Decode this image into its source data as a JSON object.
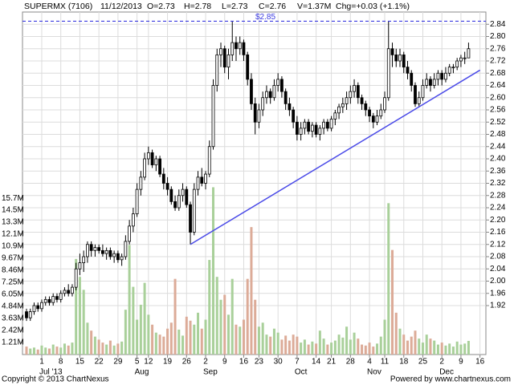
{
  "header": {
    "symbol": "SUPERMX (7106)",
    "date": "11/12/2013",
    "open": "O=2.73",
    "high": "H=2.78",
    "low": "L=2.73",
    "close": "C=2.76",
    "volume": "V=1.37M",
    "change": "Chg=+0.03 (+1.1%)"
  },
  "footer": {
    "left": "Copyright © 2013 ChartNexus",
    "right": "Powered by www.chartnexus.com"
  },
  "chart_data": {
    "type": "candlestick",
    "categories": [
      "2013-06-25",
      "2013-06-26",
      "2013-06-27",
      "2013-06-28",
      "2013-07-01",
      "2013-07-02",
      "2013-07-03",
      "2013-07-04",
      "2013-07-05",
      "2013-07-08",
      "2013-07-09",
      "2013-07-10",
      "2013-07-11",
      "2013-07-12",
      "2013-07-15",
      "2013-07-16",
      "2013-07-17",
      "2013-07-18",
      "2013-07-19",
      "2013-07-22",
      "2013-07-23",
      "2013-07-24",
      "2013-07-25",
      "2013-07-26",
      "2013-07-29",
      "2013-07-30",
      "2013-07-31",
      "2013-08-01",
      "2013-08-02",
      "2013-08-05",
      "2013-08-06",
      "2013-08-07",
      "2013-08-12",
      "2013-08-13",
      "2013-08-14",
      "2013-08-15",
      "2013-08-16",
      "2013-08-19",
      "2013-08-20",
      "2013-08-21",
      "2013-08-22",
      "2013-08-23",
      "2013-08-26",
      "2013-08-27",
      "2013-08-28",
      "2013-08-29",
      "2013-08-30",
      "2013-09-02",
      "2013-09-03",
      "2013-09-04",
      "2013-09-05",
      "2013-09-06",
      "2013-09-09",
      "2013-09-10",
      "2013-09-11",
      "2013-09-12",
      "2013-09-13",
      "2013-09-17",
      "2013-09-18",
      "2013-09-19",
      "2013-09-20",
      "2013-09-23",
      "2013-09-24",
      "2013-09-25",
      "2013-09-26",
      "2013-09-27",
      "2013-09-30",
      "2013-10-01",
      "2013-10-02",
      "2013-10-03",
      "2013-10-04",
      "2013-10-07",
      "2013-10-08",
      "2013-10-09",
      "2013-10-10",
      "2013-10-11",
      "2013-10-14",
      "2013-10-16",
      "2013-10-17",
      "2013-10-18",
      "2013-10-21",
      "2013-10-22",
      "2013-10-23",
      "2013-10-24",
      "2013-10-25",
      "2013-10-28",
      "2013-10-29",
      "2013-10-30",
      "2013-10-31",
      "2013-11-01",
      "2013-11-04",
      "2013-11-06",
      "2013-11-07",
      "2013-11-08",
      "2013-11-11",
      "2013-11-12",
      "2013-11-13",
      "2013-11-14",
      "2013-11-15",
      "2013-11-18",
      "2013-11-19",
      "2013-11-20",
      "2013-11-21",
      "2013-11-22",
      "2013-11-25",
      "2013-11-26",
      "2013-11-27",
      "2013-11-28",
      "2013-11-29",
      "2013-12-02",
      "2013-12-03",
      "2013-12-04",
      "2013-12-05",
      "2013-12-06",
      "2013-12-09",
      "2013-12-10",
      "2013-12-11"
    ],
    "candles": [
      [
        1.9,
        1.91,
        1.87,
        1.88
      ],
      [
        1.88,
        1.91,
        1.87,
        1.9
      ],
      [
        1.9,
        1.93,
        1.89,
        1.92
      ],
      [
        1.92,
        1.93,
        1.9,
        1.91
      ],
      [
        1.91,
        1.94,
        1.9,
        1.93
      ],
      [
        1.93,
        1.95,
        1.92,
        1.94
      ],
      [
        1.94,
        1.95,
        1.92,
        1.93
      ],
      [
        1.93,
        1.96,
        1.92,
        1.95
      ],
      [
        1.95,
        1.96,
        1.93,
        1.94
      ],
      [
        1.94,
        1.97,
        1.93,
        1.96
      ],
      [
        1.96,
        1.98,
        1.95,
        1.97
      ],
      [
        1.97,
        1.99,
        1.95,
        1.96
      ],
      [
        1.96,
        1.99,
        1.95,
        1.98
      ],
      [
        1.98,
        2.06,
        1.97,
        2.04
      ],
      [
        2.04,
        2.09,
        2.02,
        2.06
      ],
      [
        2.06,
        2.1,
        2.03,
        2.08
      ],
      [
        2.08,
        2.13,
        2.06,
        2.12
      ],
      [
        2.12,
        2.13,
        2.08,
        2.1
      ],
      [
        2.1,
        2.12,
        2.08,
        2.11
      ],
      [
        2.11,
        2.12,
        2.09,
        2.1
      ],
      [
        2.1,
        2.12,
        2.08,
        2.09
      ],
      [
        2.09,
        2.11,
        2.07,
        2.1
      ],
      [
        2.1,
        2.11,
        2.07,
        2.08
      ],
      [
        2.08,
        2.1,
        2.06,
        2.09
      ],
      [
        2.09,
        2.1,
        2.06,
        2.07
      ],
      [
        2.07,
        2.09,
        2.05,
        2.08
      ],
      [
        2.08,
        2.15,
        2.07,
        2.13
      ],
      [
        2.13,
        2.2,
        2.12,
        2.18
      ],
      [
        2.18,
        2.24,
        2.16,
        2.22
      ],
      [
        2.22,
        2.32,
        2.21,
        2.3
      ],
      [
        2.3,
        2.36,
        2.28,
        2.34
      ],
      [
        2.34,
        2.42,
        2.33,
        2.4
      ],
      [
        2.4,
        2.44,
        2.38,
        2.42
      ],
      [
        2.42,
        2.43,
        2.37,
        2.38
      ],
      [
        2.38,
        2.41,
        2.36,
        2.4
      ],
      [
        2.4,
        2.41,
        2.34,
        2.35
      ],
      [
        2.35,
        2.37,
        2.3,
        2.32
      ],
      [
        2.32,
        2.34,
        2.28,
        2.3
      ],
      [
        2.3,
        2.31,
        2.25,
        2.26
      ],
      [
        2.26,
        2.28,
        2.23,
        2.24
      ],
      [
        2.24,
        2.3,
        2.23,
        2.28
      ],
      [
        2.28,
        2.32,
        2.26,
        2.3
      ],
      [
        2.3,
        2.31,
        2.24,
        2.25
      ],
      [
        2.25,
        2.26,
        2.12,
        2.16
      ],
      [
        2.16,
        2.32,
        2.15,
        2.3
      ],
      [
        2.3,
        2.36,
        2.28,
        2.34
      ],
      [
        2.34,
        2.37,
        2.31,
        2.32
      ],
      [
        2.32,
        2.36,
        2.3,
        2.35
      ],
      [
        2.35,
        2.46,
        2.34,
        2.44
      ],
      [
        2.44,
        2.66,
        2.43,
        2.64
      ],
      [
        2.64,
        2.76,
        2.62,
        2.74
      ],
      [
        2.74,
        2.78,
        2.7,
        2.76
      ],
      [
        2.76,
        2.77,
        2.68,
        2.7
      ],
      [
        2.7,
        2.76,
        2.66,
        2.74
      ],
      [
        2.74,
        2.85,
        2.72,
        2.78
      ],
      [
        2.78,
        2.8,
        2.72,
        2.76
      ],
      [
        2.76,
        2.8,
        2.74,
        2.78
      ],
      [
        2.78,
        2.79,
        2.72,
        2.74
      ],
      [
        2.74,
        2.75,
        2.64,
        2.66
      ],
      [
        2.66,
        2.68,
        2.56,
        2.58
      ],
      [
        2.58,
        2.6,
        2.48,
        2.52
      ],
      [
        2.52,
        2.58,
        2.5,
        2.56
      ],
      [
        2.56,
        2.62,
        2.54,
        2.6
      ],
      [
        2.6,
        2.64,
        2.58,
        2.62
      ],
      [
        2.62,
        2.63,
        2.58,
        2.6
      ],
      [
        2.6,
        2.66,
        2.59,
        2.64
      ],
      [
        2.64,
        2.68,
        2.62,
        2.66
      ],
      [
        2.66,
        2.67,
        2.6,
        2.62
      ],
      [
        2.62,
        2.63,
        2.56,
        2.58
      ],
      [
        2.58,
        2.6,
        2.54,
        2.56
      ],
      [
        2.56,
        2.57,
        2.5,
        2.52
      ],
      [
        2.52,
        2.54,
        2.46,
        2.48
      ],
      [
        2.48,
        2.52,
        2.46,
        2.5
      ],
      [
        2.5,
        2.53,
        2.48,
        2.52
      ],
      [
        2.52,
        2.53,
        2.48,
        2.49
      ],
      [
        2.49,
        2.52,
        2.47,
        2.51
      ],
      [
        2.51,
        2.52,
        2.47,
        2.48
      ],
      [
        2.48,
        2.51,
        2.46,
        2.5
      ],
      [
        2.5,
        2.53,
        2.48,
        2.52
      ],
      [
        2.52,
        2.53,
        2.49,
        2.5
      ],
      [
        2.5,
        2.54,
        2.49,
        2.53
      ],
      [
        2.53,
        2.56,
        2.51,
        2.55
      ],
      [
        2.55,
        2.58,
        2.53,
        2.57
      ],
      [
        2.57,
        2.6,
        2.55,
        2.58
      ],
      [
        2.58,
        2.62,
        2.56,
        2.6
      ],
      [
        2.6,
        2.64,
        2.58,
        2.62
      ],
      [
        2.62,
        2.66,
        2.6,
        2.64
      ],
      [
        2.64,
        2.65,
        2.58,
        2.6
      ],
      [
        2.6,
        2.61,
        2.56,
        2.58
      ],
      [
        2.58,
        2.59,
        2.54,
        2.56
      ],
      [
        2.56,
        2.57,
        2.52,
        2.54
      ],
      [
        2.54,
        2.55,
        2.5,
        2.52
      ],
      [
        2.52,
        2.56,
        2.51,
        2.54
      ],
      [
        2.54,
        2.58,
        2.53,
        2.56
      ],
      [
        2.56,
        2.62,
        2.55,
        2.6
      ],
      [
        2.6,
        2.85,
        2.59,
        2.76
      ],
      [
        2.76,
        2.78,
        2.7,
        2.74
      ],
      [
        2.74,
        2.76,
        2.7,
        2.72
      ],
      [
        2.72,
        2.76,
        2.7,
        2.74
      ],
      [
        2.74,
        2.75,
        2.68,
        2.7
      ],
      [
        2.7,
        2.72,
        2.66,
        2.68
      ],
      [
        2.68,
        2.69,
        2.62,
        2.64
      ],
      [
        2.64,
        2.65,
        2.57,
        2.58
      ],
      [
        2.58,
        2.62,
        2.57,
        2.6
      ],
      [
        2.6,
        2.66,
        2.59,
        2.64
      ],
      [
        2.64,
        2.68,
        2.63,
        2.66
      ],
      [
        2.66,
        2.67,
        2.62,
        2.64
      ],
      [
        2.64,
        2.68,
        2.63,
        2.66
      ],
      [
        2.66,
        2.69,
        2.64,
        2.68
      ],
      [
        2.68,
        2.69,
        2.64,
        2.66
      ],
      [
        2.66,
        2.7,
        2.65,
        2.68
      ],
      [
        2.68,
        2.71,
        2.67,
        2.7
      ],
      [
        2.7,
        2.71,
        2.68,
        2.7
      ],
      [
        2.7,
        2.73,
        2.69,
        2.72
      ],
      [
        2.72,
        2.74,
        2.7,
        2.73
      ],
      [
        2.73,
        2.75,
        2.71,
        2.73
      ],
      [
        2.73,
        2.78,
        2.73,
        2.76
      ]
    ],
    "volumes": [
      0.8,
      0.6,
      0.7,
      0.5,
      0.9,
      0.7,
      0.6,
      1.0,
      0.8,
      0.7,
      1.1,
      0.9,
      1.2,
      9.6,
      7.8,
      6.5,
      3.2,
      2.4,
      1.8,
      1.5,
      1.2,
      1.0,
      1.4,
      0.9,
      1.1,
      1.3,
      4.5,
      11.0,
      6.8,
      3.5,
      5.0,
      7.2,
      4.0,
      3.0,
      2.2,
      2.0,
      1.8,
      2.6,
      3.2,
      7.6,
      2.5,
      1.9,
      3.8,
      3.4,
      3.0,
      4.2,
      2.6,
      3.5,
      9.5,
      16.8,
      7.8,
      5.5,
      6.0,
      4.0,
      7.6,
      3.0,
      2.8,
      3.5,
      7.6,
      12.8,
      5.5,
      2.8,
      3.2,
      2.0,
      1.8,
      2.6,
      2.2,
      1.5,
      1.9,
      1.4,
      2.0,
      1.8,
      1.2,
      1.5,
      1.0,
      1.3,
      1.1,
      2.4,
      1.6,
      1.0,
      1.2,
      1.4,
      2.0,
      1.7,
      2.8,
      1.5,
      2.2,
      1.6,
      1.0,
      0.9,
      1.2,
      0.8,
      1.1,
      1.8,
      3.5,
      15.2,
      10.5,
      4.2,
      2.6,
      2.0,
      1.4,
      1.8,
      2.4,
      1.6,
      1.2,
      2.0,
      1.6,
      1.4,
      1.0,
      1.2,
      0.9,
      1.1,
      0.8,
      1.3,
      1.0,
      1.1,
      1.37
    ],
    "ylim": [
      1.76,
      2.88
    ],
    "yticks": [
      1.92,
      1.96,
      {
        "value": 2.0,
        "label": "2.00"
      },
      2.04,
      2.08,
      2.12,
      2.16,
      {
        "value": 2.2,
        "label": "2.20"
      },
      2.24,
      2.28,
      2.32,
      2.36,
      {
        "value": 2.4,
        "label": "2.40"
      },
      2.44,
      2.48,
      2.52,
      2.56,
      {
        "value": 2.6,
        "label": "2.60"
      },
      2.64,
      2.68,
      2.72,
      2.76,
      {
        "value": 2.8,
        "label": "2.80"
      },
      2.84
    ],
    "volume_ylim": [
      0,
      34.4
    ],
    "volume_ticks": [
      {
        "value": 1.21,
        "label": "1.21M"
      },
      {
        "value": 2.42,
        "label": "2.42M"
      },
      {
        "value": 3.63,
        "label": "3.63M"
      },
      {
        "value": 4.84,
        "label": "4.84M"
      },
      {
        "value": 6.05,
        "label": "6.05M"
      },
      {
        "value": 7.25,
        "label": "7.25M"
      },
      {
        "value": 8.46,
        "label": "8.46M"
      },
      {
        "value": 9.67,
        "label": "9.67M"
      },
      {
        "value": 10.9,
        "label": "10.9M"
      },
      {
        "value": 12.1,
        "label": "12.1M"
      },
      {
        "value": 13.3,
        "label": "13.3M"
      },
      {
        "value": 14.5,
        "label": "14.5M"
      },
      {
        "value": 15.7,
        "label": "15.7M"
      }
    ],
    "xticks": [
      {
        "value": "2013-07-01",
        "label": "1"
      },
      {
        "value": "2013-07-08",
        "label": "8"
      },
      {
        "value": "2013-07-15",
        "label": "15"
      },
      {
        "value": "2013-07-22",
        "label": "22"
      },
      {
        "value": "2013-07-29",
        "label": "29"
      },
      {
        "value": "2013-08-05",
        "label": "5"
      },
      {
        "value": "2013-08-12",
        "label": "12"
      },
      {
        "value": "2013-08-19",
        "label": "19"
      },
      {
        "value": "2013-08-26",
        "label": "26"
      },
      {
        "value": "2013-09-02",
        "label": "2"
      },
      {
        "value": "2013-09-09",
        "label": "9"
      },
      {
        "value": "2013-09-16",
        "label": "16"
      },
      {
        "value": "2013-09-23",
        "label": "23"
      },
      {
        "value": "2013-09-30",
        "label": "30"
      },
      {
        "value": "2013-10-07",
        "label": "7"
      },
      {
        "value": "2013-10-14",
        "label": "14"
      },
      {
        "value": "2013-10-21",
        "label": "21"
      },
      {
        "value": "2013-10-28",
        "label": "28"
      },
      {
        "value": "2013-11-04",
        "label": "4"
      },
      {
        "value": "2013-11-11",
        "label": "11"
      },
      {
        "value": "2013-11-18",
        "label": "18"
      },
      {
        "value": "2013-11-25",
        "label": "25"
      },
      {
        "value": "2013-12-02",
        "label": "2"
      },
      {
        "value": "2013-12-09",
        "label": "9"
      },
      {
        "value": "2013-12-16",
        "label": "16"
      }
    ],
    "month_labels": [
      {
        "value": "2013-07-01",
        "label": "Jul '13"
      },
      {
        "value": "2013-08-05",
        "label": "Aug"
      },
      {
        "value": "2013-09-02",
        "label": "Sep"
      },
      {
        "value": "2013-10-07",
        "label": "Oct"
      },
      {
        "value": "2013-11-04",
        "label": "Nov"
      },
      {
        "value": "2013-12-02",
        "label": "Dec"
      }
    ],
    "resistance": {
      "value": 2.85,
      "label": "$2.85",
      "color": "#3a3ae0"
    },
    "trendline": {
      "x": [
        "2013-08-27",
        "2013-12-16"
      ],
      "y": [
        2.12,
        2.69
      ],
      "color": "#4b4be8"
    },
    "up_volume_color": "#a9d09a",
    "down_volume_color": "#dcab98",
    "candle_color": "#000000",
    "grid": true
  }
}
